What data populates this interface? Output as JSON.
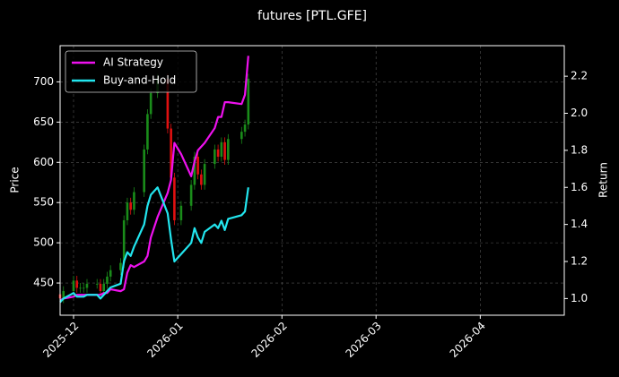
{
  "chart_data": {
    "type": "candlestick",
    "title": "futures [PTL.GFE]",
    "ylabel": "Price",
    "y2label": "Return",
    "x": [
      -4,
      -3,
      0,
      1,
      2,
      3,
      4,
      7,
      8,
      9,
      10,
      11,
      14,
      15,
      16,
      17,
      18,
      21,
      22,
      23,
      25,
      28,
      29,
      30,
      32,
      35,
      36,
      37,
      38,
      39,
      42,
      43,
      44,
      45,
      46,
      50,
      51,
      52
    ],
    "xlim": [
      -4,
      146
    ],
    "xticks": [
      {
        "value": 0,
        "label": "2025-12"
      },
      {
        "value": 31,
        "label": "2026-01"
      },
      {
        "value": 62,
        "label": "2026-02"
      },
      {
        "value": 90,
        "label": "2026-03"
      },
      {
        "value": 121,
        "label": "2026-04"
      }
    ],
    "open": [
      436,
      431,
      440,
      453,
      444,
      444,
      444,
      449,
      449,
      440,
      449,
      458,
      466,
      475,
      528,
      550,
      541,
      563,
      616,
      660,
      686,
      704,
      642,
      581,
      528,
      546,
      572,
      607,
      585,
      572,
      598,
      616,
      607,
      625,
      603,
      629,
      638,
      647
    ],
    "high": [
      442,
      446,
      459,
      459,
      450,
      450,
      455,
      455,
      455,
      455,
      464,
      472,
      481,
      534,
      556,
      556,
      569,
      622,
      666,
      692,
      710,
      710,
      648,
      587,
      552,
      578,
      613,
      613,
      591,
      604,
      622,
      622,
      631,
      631,
      635,
      644,
      653,
      710
    ],
    "low": [
      425,
      425,
      434,
      438,
      438,
      438,
      438,
      443,
      434,
      434,
      443,
      452,
      460,
      469,
      522,
      535,
      535,
      557,
      610,
      654,
      680,
      636,
      575,
      522,
      522,
      540,
      566,
      579,
      566,
      566,
      592,
      601,
      601,
      597,
      597,
      623,
      632,
      641
    ],
    "close": [
      431,
      440,
      453,
      444,
      444,
      444,
      449,
      449,
      440,
      449,
      458,
      466,
      475,
      528,
      550,
      541,
      563,
      616,
      660,
      686,
      704,
      642,
      581,
      528,
      546,
      572,
      607,
      585,
      572,
      598,
      616,
      607,
      625,
      603,
      629,
      638,
      647,
      704
    ],
    "up_color": "#1a8c1a",
    "down_color": "#e01010",
    "series": [
      {
        "name": "AI Strategy",
        "color": "#ee11ee",
        "axis": "y2",
        "values": [
          0.99,
          1.0,
          1.01,
          1.02,
          1.02,
          1.02,
          1.02,
          1.02,
          1.02,
          1.03,
          1.03,
          1.05,
          1.04,
          1.05,
          1.14,
          1.18,
          1.17,
          1.2,
          1.23,
          1.33,
          1.44,
          1.57,
          1.64,
          1.84,
          1.78,
          1.66,
          1.74,
          1.8,
          1.82,
          1.84,
          1.92,
          1.98,
          1.98,
          2.06,
          2.06,
          2.05,
          2.1,
          2.31
        ]
      },
      {
        "name": "Buy-and-Hold",
        "color": "#22e5ee",
        "axis": "y2",
        "values": [
          0.98,
          1.0,
          1.03,
          1.01,
          1.01,
          1.01,
          1.02,
          1.02,
          1.0,
          1.02,
          1.04,
          1.06,
          1.08,
          1.2,
          1.25,
          1.23,
          1.28,
          1.4,
          1.5,
          1.56,
          1.6,
          1.46,
          1.32,
          1.2,
          1.24,
          1.3,
          1.38,
          1.33,
          1.3,
          1.36,
          1.4,
          1.38,
          1.42,
          1.37,
          1.43,
          1.45,
          1.47,
          1.6
        ]
      }
    ],
    "ylim": [
      410,
      745
    ],
    "yticks": [
      450,
      500,
      550,
      600,
      650,
      700
    ],
    "y2lim": [
      0.91,
      2.365
    ],
    "y2ticks": [
      {
        "value": 1,
        "label": "1.0"
      },
      1.2,
      1.4,
      1.6,
      1.8,
      {
        "value": 2,
        "label": "2.0"
      },
      2.2
    ],
    "grid": true,
    "legend": "upper left"
  }
}
